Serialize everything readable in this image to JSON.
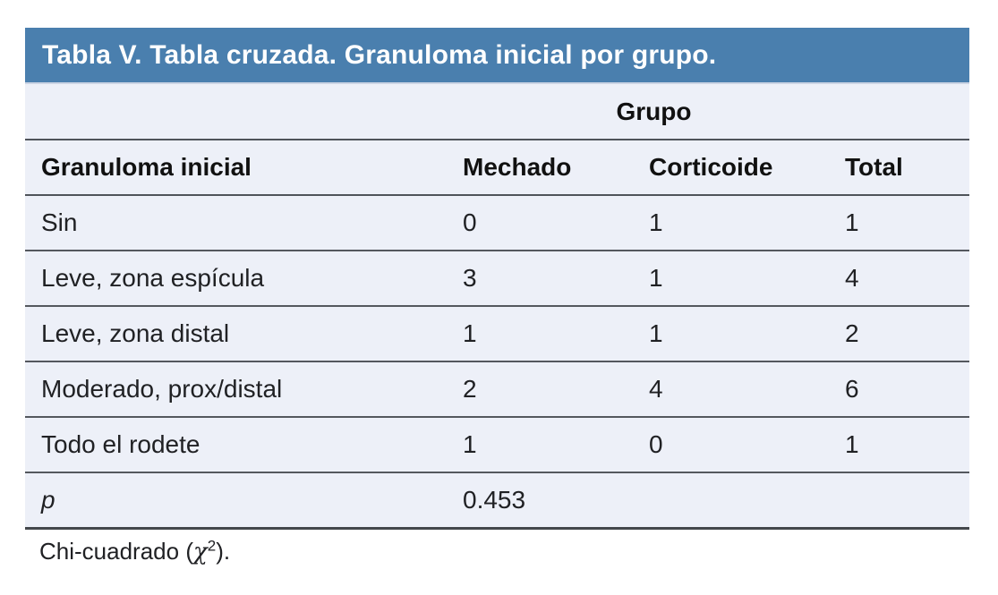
{
  "table": {
    "title": "Tabla V. Tabla cruzada. Granuloma inicial por grupo.",
    "group_header": "Grupo",
    "columns": {
      "label": "Granuloma inicial",
      "mechado": "Mechado",
      "corticoide": "Corticoide",
      "total": "Total"
    },
    "rows": [
      {
        "label": "Sin",
        "mechado": "0",
        "corticoide": "1",
        "total": "1"
      },
      {
        "label": "Leve, zona espícula",
        "mechado": "3",
        "corticoide": "1",
        "total": "4"
      },
      {
        "label": "Leve, zona distal",
        "mechado": "1",
        "corticoide": "1",
        "total": "2"
      },
      {
        "label": "Moderado, prox/distal",
        "mechado": "2",
        "corticoide": "4",
        "total": "6"
      },
      {
        "label": "Todo el rodete",
        "mechado": "1",
        "corticoide": "0",
        "total": "1"
      }
    ],
    "p_row": {
      "label": "p",
      "value": "0.453"
    },
    "footnote": {
      "prefix": "Chi-cuadrado (",
      "chi": "χ",
      "exponent": "2",
      "suffix": ")."
    }
  },
  "colors": {
    "title_bar_bg": "#4a7fae",
    "title_text": "#ffffff",
    "body_bg": "#edf0f8",
    "divider": "#54585e",
    "text": "#202124"
  }
}
